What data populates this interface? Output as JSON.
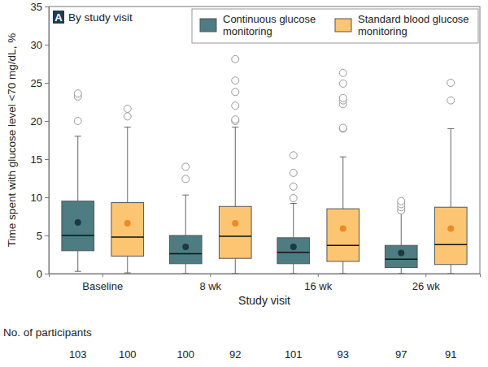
{
  "chart_data": {
    "type": "box",
    "panel": "A",
    "title": "By study visit",
    "x_label": "Study visit",
    "y_label": "Time spent with glucose level <70 mg/dL, %",
    "categories": [
      "Baseline",
      "8 wk",
      "16 wk",
      "26 wk"
    ],
    "ylim": [
      0,
      35
    ],
    "yticks": [
      0,
      5,
      10,
      15,
      20,
      25,
      30,
      35
    ],
    "legend": "top-right",
    "grid": false,
    "n_label": "No. of participants",
    "series": [
      {
        "name": "Continuous glucose monitoring",
        "color": "#4d7c83",
        "n": [
          103,
          100,
          101,
          97
        ],
        "values": [
          {
            "min": 0.3,
            "q1": 3.0,
            "median": 5.0,
            "q3": 9.5,
            "max": 18.0,
            "mean": 6.7,
            "outliers": [
              20.0,
              23.2,
              23.6
            ]
          },
          {
            "min": 0,
            "q1": 1.3,
            "median": 2.6,
            "q3": 5.0,
            "max": 10.3,
            "mean": 3.5,
            "outliers": [
              12.4,
              14.0
            ]
          },
          {
            "min": 0,
            "q1": 1.3,
            "median": 2.8,
            "q3": 4.7,
            "max": 9.2,
            "mean": 3.5,
            "outliers": [
              9.9,
              11.4,
              13.2,
              15.5
            ]
          },
          {
            "min": 0,
            "q1": 0.8,
            "median": 1.9,
            "q3": 3.7,
            "max": 8.0,
            "mean": 2.7,
            "outliers": [
              8.3,
              8.7,
              9.1,
              9.5
            ]
          }
        ]
      },
      {
        "name": "Standard blood glucose monitoring",
        "color": "#fcc572",
        "n": [
          100,
          92,
          93,
          91
        ],
        "values": [
          {
            "min": 0.1,
            "q1": 2.3,
            "median": 4.8,
            "q3": 9.3,
            "max": 19.2,
            "mean": 6.6,
            "outliers": [
              20.6,
              21.6
            ]
          },
          {
            "min": 0,
            "q1": 2.0,
            "median": 4.9,
            "q3": 8.8,
            "max": 19.2,
            "mean": 6.6,
            "outliers": [
              20.0,
              20.2,
              22.0,
              23.8,
              25.3,
              28.1
            ]
          },
          {
            "min": 0,
            "q1": 1.6,
            "median": 3.7,
            "q3": 8.5,
            "max": 15.3,
            "mean": 5.9,
            "outliers": [
              19.0,
              19.1,
              22.2,
              22.7,
              23.0,
              24.9,
              26.3
            ]
          },
          {
            "min": 0,
            "q1": 1.2,
            "median": 3.8,
            "q3": 8.7,
            "max": 19.0,
            "mean": 5.9,
            "outliers": [
              22.7,
              25.0
            ]
          }
        ]
      }
    ]
  }
}
